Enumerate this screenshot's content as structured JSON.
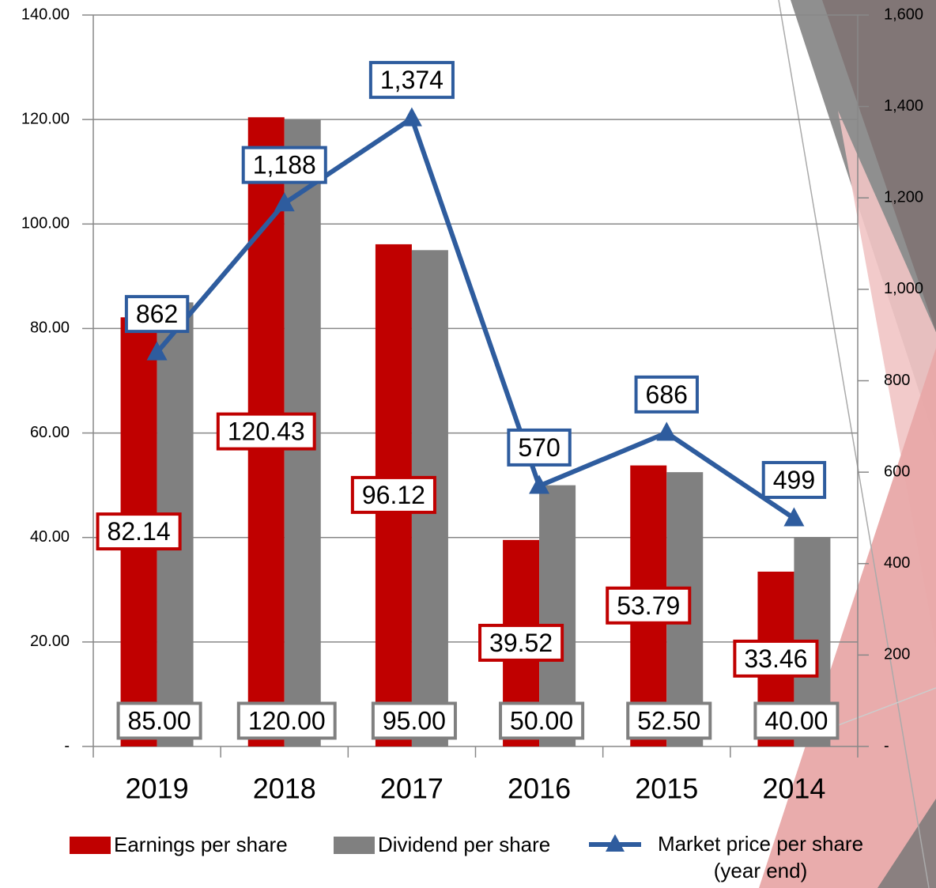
{
  "chart_data": {
    "type": "bar-line",
    "categories": [
      "2019",
      "2018",
      "2017",
      "2016",
      "2015",
      "2014"
    ],
    "series": [
      {
        "name": "Earnings per share",
        "type": "bar",
        "color": "#c00000",
        "values": [
          82.14,
          120.43,
          96.12,
          39.52,
          53.79,
          33.46
        ]
      },
      {
        "name": "Dividend per share",
        "type": "bar",
        "color": "#808080",
        "values": [
          85,
          120,
          95,
          50,
          52.5,
          40
        ],
        "value_labels": [
          "85.00",
          "120.00",
          "95.00",
          "50.00",
          "52.50",
          "40.00"
        ]
      },
      {
        "name": "Market price per share (year end)",
        "type": "line",
        "axis": "y2",
        "color": "#2e5c9e",
        "values": [
          862,
          1188,
          1374,
          570,
          686,
          499
        ],
        "value_labels": [
          "862",
          "1,188",
          "1,374",
          "570",
          "686",
          "499"
        ]
      }
    ],
    "ylim": [
      0,
      140
    ],
    "yticks": [
      {
        "value": 0,
        "label": "-"
      },
      {
        "value": 20,
        "label": "20.00"
      },
      {
        "value": 40,
        "label": "40.00"
      },
      {
        "value": 60,
        "label": "60.00"
      },
      {
        "value": 80,
        "label": "80.00"
      },
      {
        "value": 100,
        "label": "100.00"
      },
      {
        "value": 120,
        "label": "120.00"
      },
      {
        "value": 140,
        "label": "140.00"
      }
    ],
    "y2lim": [
      0,
      1600
    ],
    "y2ticks": [
      {
        "value": 0,
        "label": "-"
      },
      200,
      400,
      600,
      800,
      {
        "value": 1000,
        "label": "1,000"
      },
      {
        "value": 1200,
        "label": "1,200"
      },
      {
        "value": 1400,
        "label": "1,400"
      },
      {
        "value": 1600,
        "label": "1,600"
      }
    ],
    "grid": true,
    "legend": "bottom"
  }
}
